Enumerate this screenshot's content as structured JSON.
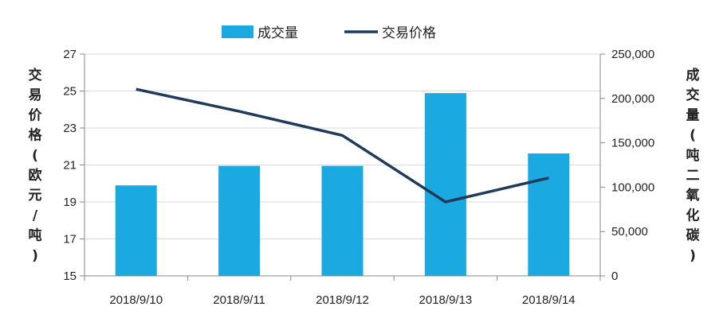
{
  "chart_data": {
    "type": "bar+line",
    "categories": [
      "2018/9/10",
      "2018/9/11",
      "2018/9/12",
      "2018/9/13",
      "2018/9/14"
    ],
    "series": [
      {
        "name": "成交量",
        "type": "bar",
        "axis": "right",
        "color": "#1aa9e0",
        "values": [
          102000,
          124000,
          124000,
          206000,
          138000
        ]
      },
      {
        "name": "交易价格",
        "type": "line",
        "axis": "left",
        "color": "#1f3a5a",
        "values": [
          25.1,
          23.9,
          22.6,
          19.0,
          20.3
        ]
      }
    ],
    "y_left": {
      "label": "交易价格（欧元/吨）",
      "lim": [
        15,
        27
      ],
      "ticks": [
        "15",
        "17",
        "19",
        "21",
        "23",
        "25",
        "27"
      ]
    },
    "y_right": {
      "label": "成交量（吨二氧化碳）",
      "lim": [
        0,
        250000
      ],
      "ticks": [
        "0",
        "50,000",
        "100,000",
        "150,000",
        "200,000",
        "250,000"
      ]
    },
    "grid": "horizontal",
    "legend": "top-center"
  }
}
